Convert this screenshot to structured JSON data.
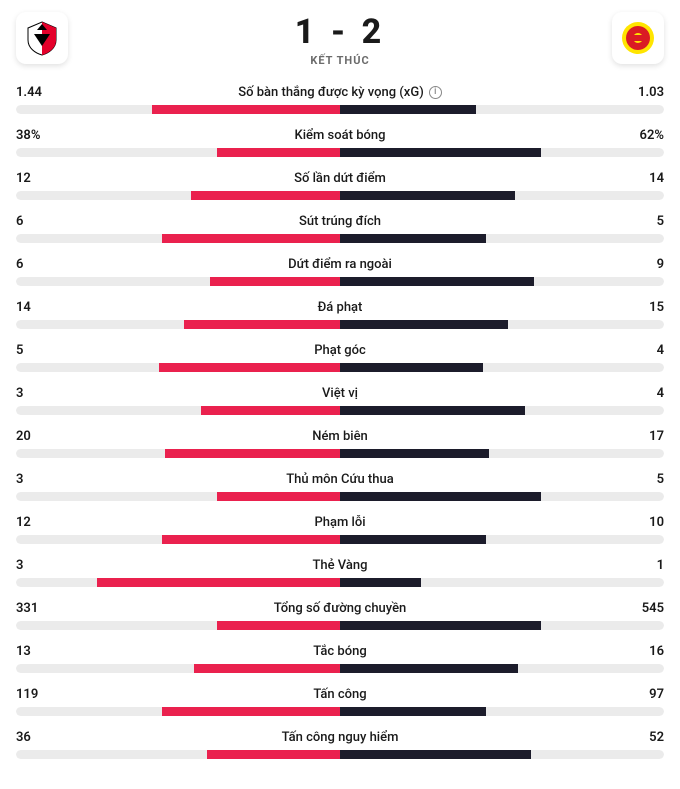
{
  "colors": {
    "home": "#ea214e",
    "away": "#1c1c2b",
    "track": "#ebebeb",
    "background": "#ffffff"
  },
  "match": {
    "home_score": 1,
    "away_score": 2,
    "status": "KẾT THÚC",
    "home_crest_colors": [
      "#e4012b",
      "#000000",
      "#ffffff"
    ],
    "away_crest_colors": [
      "#da1b24",
      "#ffe500"
    ]
  },
  "stats": [
    {
      "label": "Số bàn thắng được kỳ vọng (xG)",
      "hv": "1.44",
      "av": "1.03",
      "hpct": 58,
      "apct": 42,
      "info": true
    },
    {
      "label": "Kiểm soát bóng",
      "hv": "38%",
      "av": "62%",
      "hpct": 38,
      "apct": 62
    },
    {
      "label": "Số lần dứt điểm",
      "hv": "12",
      "av": "14",
      "hpct": 46,
      "apct": 54
    },
    {
      "label": "Sút trúng đích",
      "hv": "6",
      "av": "5",
      "hpct": 55,
      "apct": 45
    },
    {
      "label": "Dứt điểm ra ngoài",
      "hv": "6",
      "av": "9",
      "hpct": 40,
      "apct": 60
    },
    {
      "label": "Đá phạt",
      "hv": "14",
      "av": "15",
      "hpct": 48,
      "apct": 52
    },
    {
      "label": "Phạt góc",
      "hv": "5",
      "av": "4",
      "hpct": 56,
      "apct": 44
    },
    {
      "label": "Việt vị",
      "hv": "3",
      "av": "4",
      "hpct": 43,
      "apct": 57
    },
    {
      "label": "Ném biên",
      "hv": "20",
      "av": "17",
      "hpct": 54,
      "apct": 46
    },
    {
      "label": "Thủ môn Cứu thua",
      "hv": "3",
      "av": "5",
      "hpct": 38,
      "apct": 62
    },
    {
      "label": "Phạm lỗi",
      "hv": "12",
      "av": "10",
      "hpct": 55,
      "apct": 45
    },
    {
      "label": "Thẻ Vàng",
      "hv": "3",
      "av": "1",
      "hpct": 75,
      "apct": 25
    },
    {
      "label": "Tổng số đường chuyền",
      "hv": "331",
      "av": "545",
      "hpct": 38,
      "apct": 62
    },
    {
      "label": "Tắc bóng",
      "hv": "13",
      "av": "16",
      "hpct": 45,
      "apct": 55
    },
    {
      "label": "Tấn công",
      "hv": "119",
      "av": "97",
      "hpct": 55,
      "apct": 45
    },
    {
      "label": "Tấn công nguy hiểm",
      "hv": "36",
      "av": "52",
      "hpct": 41,
      "apct": 59
    }
  ]
}
